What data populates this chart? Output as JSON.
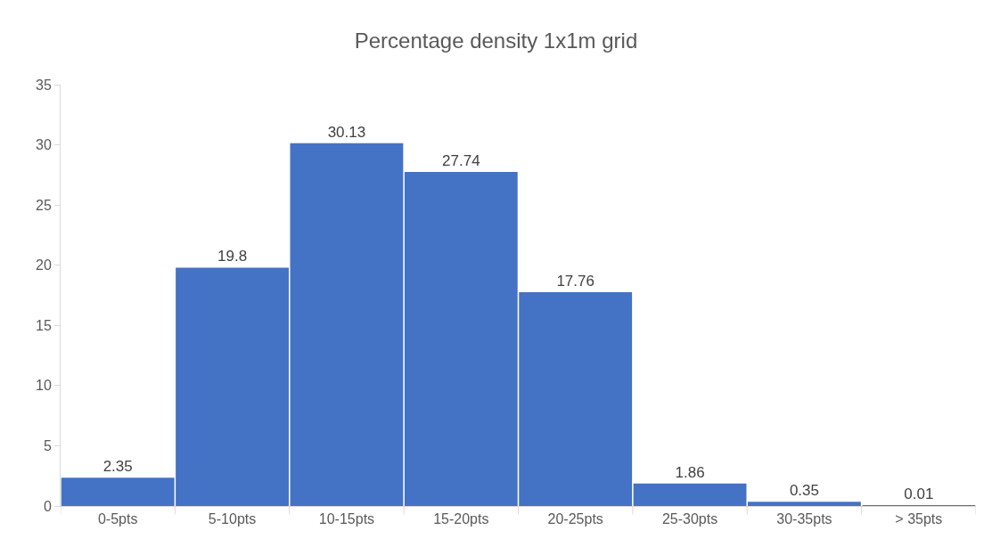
{
  "chart_data": {
    "type": "bar",
    "title": "Percentage density 1x1m grid",
    "categories": [
      "0-5pts",
      "5-10pts",
      "10-15pts",
      "15-20pts",
      "20-25pts",
      "25-30pts",
      "30-35pts",
      "> 35pts"
    ],
    "values": [
      2.35,
      19.8,
      30.13,
      27.74,
      17.76,
      1.86,
      0.35,
      0.01
    ],
    "color": "#4472c4",
    "ylim": [
      0,
      35
    ],
    "yticks": [
      0,
      5,
      10,
      15,
      20,
      25,
      30,
      35
    ],
    "grid": false,
    "legend": false,
    "data_labels": true
  }
}
